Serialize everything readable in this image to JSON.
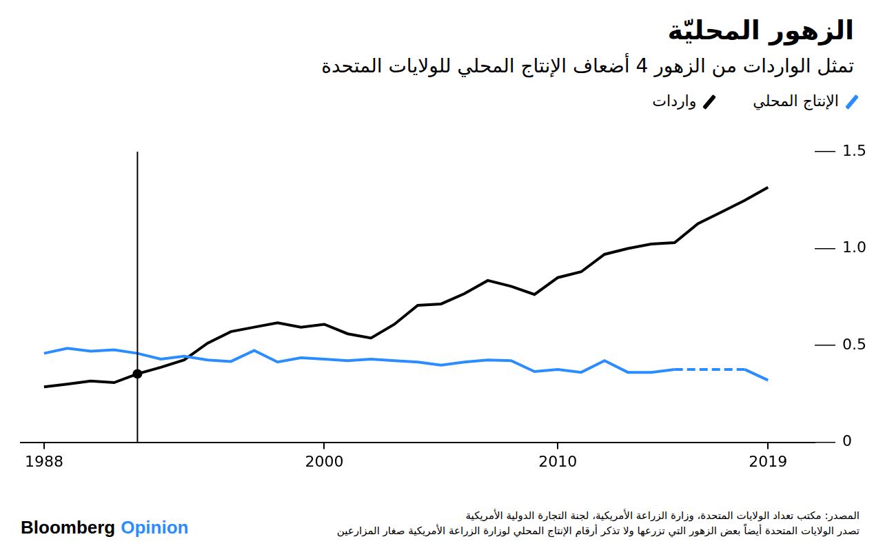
{
  "chart_data": {
    "type": "line",
    "title": "الزهور المحليّة",
    "subtitle": "تمثل الواردات من الزهور 4 أضعاف الإنتاج المحلي للولايات المتحدة",
    "x": [
      1988,
      1989,
      1990,
      1991,
      1992,
      1993,
      1994,
      1995,
      1996,
      1997,
      1998,
      1999,
      2000,
      2001,
      2002,
      2003,
      2004,
      2005,
      2006,
      2007,
      2008,
      2009,
      2010,
      2011,
      2012,
      2013,
      2014,
      2015,
      2016,
      2017,
      2018,
      2019
    ],
    "series": [
      {
        "name": "الإنتاج المحلي",
        "color": "#2b8cff",
        "values": [
          0.459,
          0.485,
          0.47,
          0.477,
          0.459,
          0.429,
          0.444,
          0.425,
          0.417,
          0.474,
          0.414,
          0.436,
          0.429,
          0.421,
          0.429,
          0.421,
          0.414,
          0.398,
          0.414,
          0.425,
          0.421,
          0.365,
          0.376,
          0.361,
          0.421,
          0.361,
          0.361,
          0.376,
          null,
          null,
          0.376,
          0.32
        ]
      },
      {
        "name": "واردات",
        "color": "#000000",
        "values": [
          0.286,
          0.3,
          0.316,
          0.308,
          0.353,
          0.387,
          0.425,
          0.511,
          0.571,
          0.594,
          0.617,
          0.594,
          0.609,
          0.56,
          0.538,
          0.609,
          0.707,
          0.714,
          0.767,
          0.835,
          0.805,
          0.763,
          0.85,
          0.88,
          0.97,
          1.0,
          1.023,
          1.03,
          1.128,
          1.188,
          1.248,
          1.316
        ]
      }
    ],
    "xlim": [
      1987,
      2021
    ],
    "xticks": [
      1988,
      2000,
      2010,
      2019
    ],
    "ylim": [
      0,
      1.5
    ],
    "yticks": [
      0,
      0.5,
      {
        "value": 1,
        "label": "1.0"
      },
      1.5
    ],
    "grid": false,
    "legend": "top",
    "vlines": [
      {
        "x": 1992,
        "series": "واردات"
      }
    ],
    "source": "المصدر: مكتب تعداد الولايات المتحدة، وزارة الزراعة الأمريكية، لجنة التجارة الدولية الأمريكية",
    "note": "تصدر الولايات المتحدة أيضاً بعض الزهور التي تزرعها ولا تذكر أرقام الإنتاج المحلي لوزارة الزراعة الأمريكية صغار المزارعين",
    "credit": [
      "Bloomberg",
      "Opinion"
    ]
  }
}
